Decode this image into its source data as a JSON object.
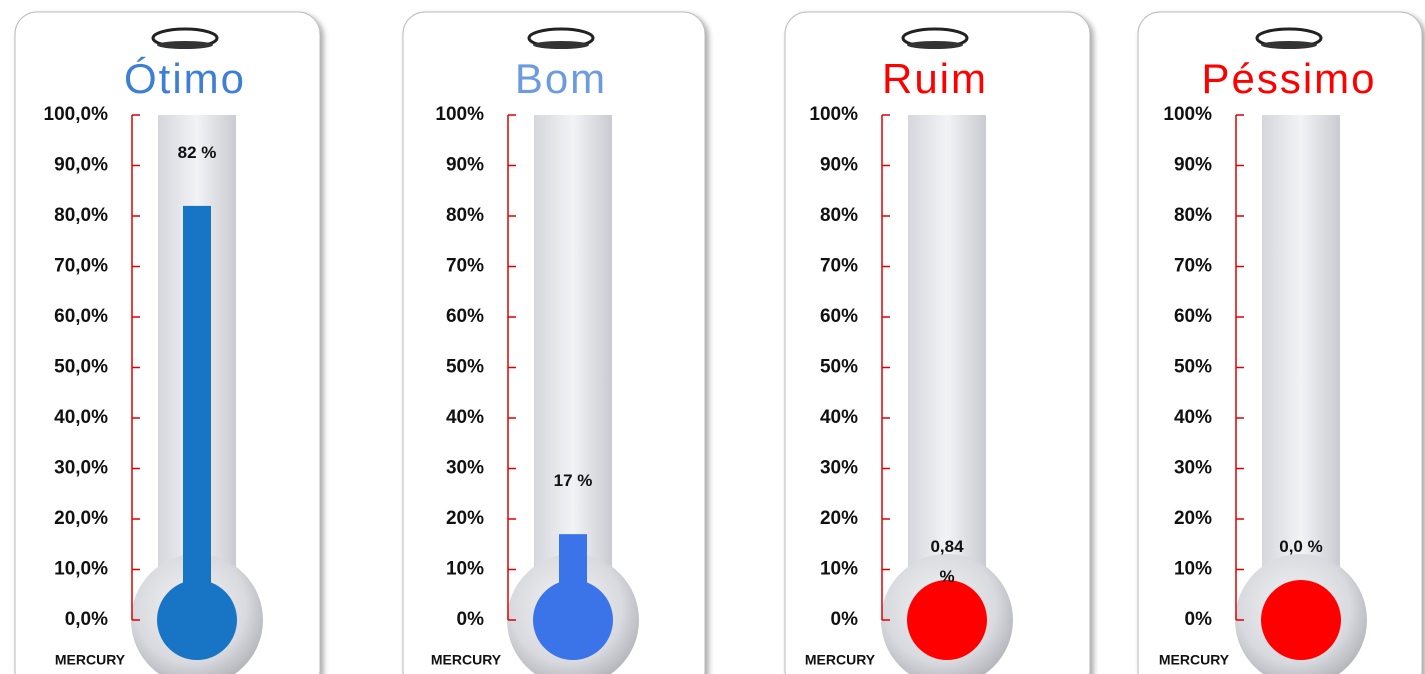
{
  "chart_data": [
    {
      "type": "thermometer",
      "title": "Ótimo",
      "title_color": "#3d7fd6",
      "values": [
        82
      ],
      "value_labels": [
        "82 %"
      ],
      "color": "#1874c4",
      "xlabel": "MERCURY",
      "axis_color": "#e00000",
      "ylim": [
        0,
        100
      ],
      "yticks": [
        {
          "value": 0,
          "label": "0,0%"
        },
        {
          "value": 10,
          "label": "10,0%"
        },
        {
          "value": 20,
          "label": "20,0%"
        },
        {
          "value": 30,
          "label": "30,0%"
        },
        {
          "value": 40,
          "label": "40,0%"
        },
        {
          "value": 50,
          "label": "50,0%"
        },
        {
          "value": 60,
          "label": "60,0%"
        },
        {
          "value": 70,
          "label": "70,0%"
        },
        {
          "value": 80,
          "label": "80,0%"
        },
        {
          "value": 90,
          "label": "90,0%"
        },
        {
          "value": 100,
          "label": "100,0%"
        }
      ]
    },
    {
      "type": "thermometer",
      "title": "Bom",
      "title_color": "#6d9be0",
      "values": [
        17
      ],
      "value_labels": [
        "17 %"
      ],
      "color": "#3b73e8",
      "xlabel": "MERCURY",
      "axis_color": "#e00000",
      "ylim": [
        0,
        100
      ],
      "yticks": [
        {
          "value": 0,
          "label": "0%"
        },
        {
          "value": 10,
          "label": "10%"
        },
        {
          "value": 20,
          "label": "20%"
        },
        {
          "value": 30,
          "label": "30%"
        },
        {
          "value": 40,
          "label": "40%"
        },
        {
          "value": 50,
          "label": "50%"
        },
        {
          "value": 60,
          "label": "60%"
        },
        {
          "value": 70,
          "label": "70%"
        },
        {
          "value": 80,
          "label": "80%"
        },
        {
          "value": 90,
          "label": "90%"
        },
        {
          "value": 100,
          "label": "100%"
        }
      ]
    },
    {
      "type": "thermometer",
      "title": "Ruim",
      "title_color": "#ff0000",
      "values": [
        0.84
      ],
      "value_labels": [
        "0,84 %"
      ],
      "color": "#ff0000",
      "xlabel": "MERCURY",
      "axis_color": "#e00000",
      "ylim": [
        0,
        100
      ],
      "yticks": [
        {
          "value": 0,
          "label": "0%"
        },
        {
          "value": 10,
          "label": "10%"
        },
        {
          "value": 20,
          "label": "20%"
        },
        {
          "value": 30,
          "label": "30%"
        },
        {
          "value": 40,
          "label": "40%"
        },
        {
          "value": 50,
          "label": "50%"
        },
        {
          "value": 60,
          "label": "60%"
        },
        {
          "value": 70,
          "label": "70%"
        },
        {
          "value": 80,
          "label": "80%"
        },
        {
          "value": 90,
          "label": "90%"
        },
        {
          "value": 100,
          "label": "100%"
        }
      ]
    },
    {
      "type": "thermometer",
      "title": "Péssimo",
      "title_color": "#ff0000",
      "values": [
        0.0
      ],
      "value_labels": [
        "0,0 %"
      ],
      "color": "#ff0000",
      "xlabel": "MERCURY",
      "axis_color": "#e00000",
      "ylim": [
        0,
        100
      ],
      "yticks": [
        {
          "value": 0,
          "label": "0%"
        },
        {
          "value": 10,
          "label": "10%"
        },
        {
          "value": 20,
          "label": "20%"
        },
        {
          "value": 30,
          "label": "30%"
        },
        {
          "value": 40,
          "label": "40%"
        },
        {
          "value": 50,
          "label": "50%"
        },
        {
          "value": 60,
          "label": "60%"
        },
        {
          "value": 70,
          "label": "70%"
        },
        {
          "value": 80,
          "label": "80%"
        },
        {
          "value": 90,
          "label": "90%"
        },
        {
          "value": 100,
          "label": "100%"
        }
      ]
    }
  ]
}
